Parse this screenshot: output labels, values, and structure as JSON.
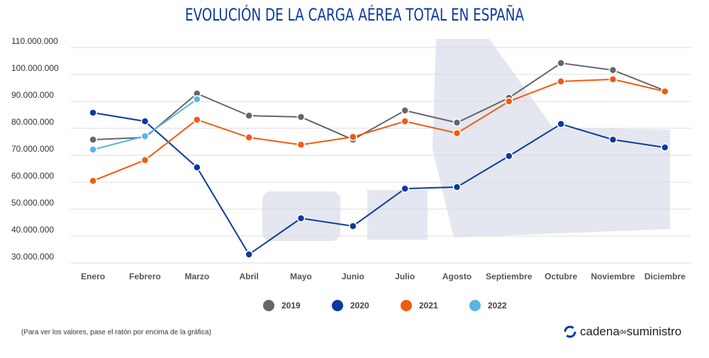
{
  "chart_data": {
    "type": "line",
    "title": "EVOLUCIÓN DE LA CARGA AÉREA TOTAL EN ESPAÑA",
    "categories": [
      "Enero",
      "Febrero",
      "Marzo",
      "Abril",
      "Mayo",
      "Junio",
      "Julio",
      "Agosto",
      "Septiembre",
      "Octubre",
      "Noviembre",
      "Diciembre"
    ],
    "series": [
      {
        "name": "2019",
        "color": "#666666",
        "values": [
          75800000,
          76600000,
          92900000,
          84700000,
          84200000,
          75800000,
          86600000,
          82100000,
          91300000,
          104200000,
          101600000,
          94000000
        ]
      },
      {
        "name": "2020",
        "color": "#0a3a9e",
        "values": [
          85800000,
          82600000,
          65500000,
          33200000,
          46600000,
          43700000,
          57600000,
          58200000,
          69700000,
          81600000,
          75800000,
          72900000
        ]
      },
      {
        "name": "2021",
        "color": "#f25a0f",
        "values": [
          60500000,
          68200000,
          83200000,
          76600000,
          73900000,
          76800000,
          82600000,
          78200000,
          90000000,
          97400000,
          98200000,
          93700000
        ]
      },
      {
        "name": "2022",
        "color": "#5ab4e6",
        "values": [
          72100000,
          77100000,
          90800000,
          null,
          null,
          null,
          null,
          null,
          null,
          null,
          null,
          null
        ]
      }
    ],
    "ylim": [
      30000000,
      110000000
    ],
    "yticks": [
      {
        "value": 30000000,
        "label": "30.000.000"
      },
      {
        "value": 40000000,
        "label": "40.000.000"
      },
      {
        "value": 50000000,
        "label": "50.000.000"
      },
      {
        "value": 60000000,
        "label": "60.000.000"
      },
      {
        "value": 70000000,
        "label": "70.000.000"
      },
      {
        "value": 80000000,
        "label": "80.000.000"
      },
      {
        "value": 90000000,
        "label": "90.000.000"
      },
      {
        "value": 100000000,
        "label": "100.000.000"
      },
      {
        "value": 110000000,
        "label": "110.000.000"
      }
    ],
    "grid": true,
    "note": "(Para ver los valores, pase el ratón por encima de la gráfica)",
    "logo": {
      "part1": "cadena",
      "part2": "de",
      "part3": "suministro"
    }
  }
}
